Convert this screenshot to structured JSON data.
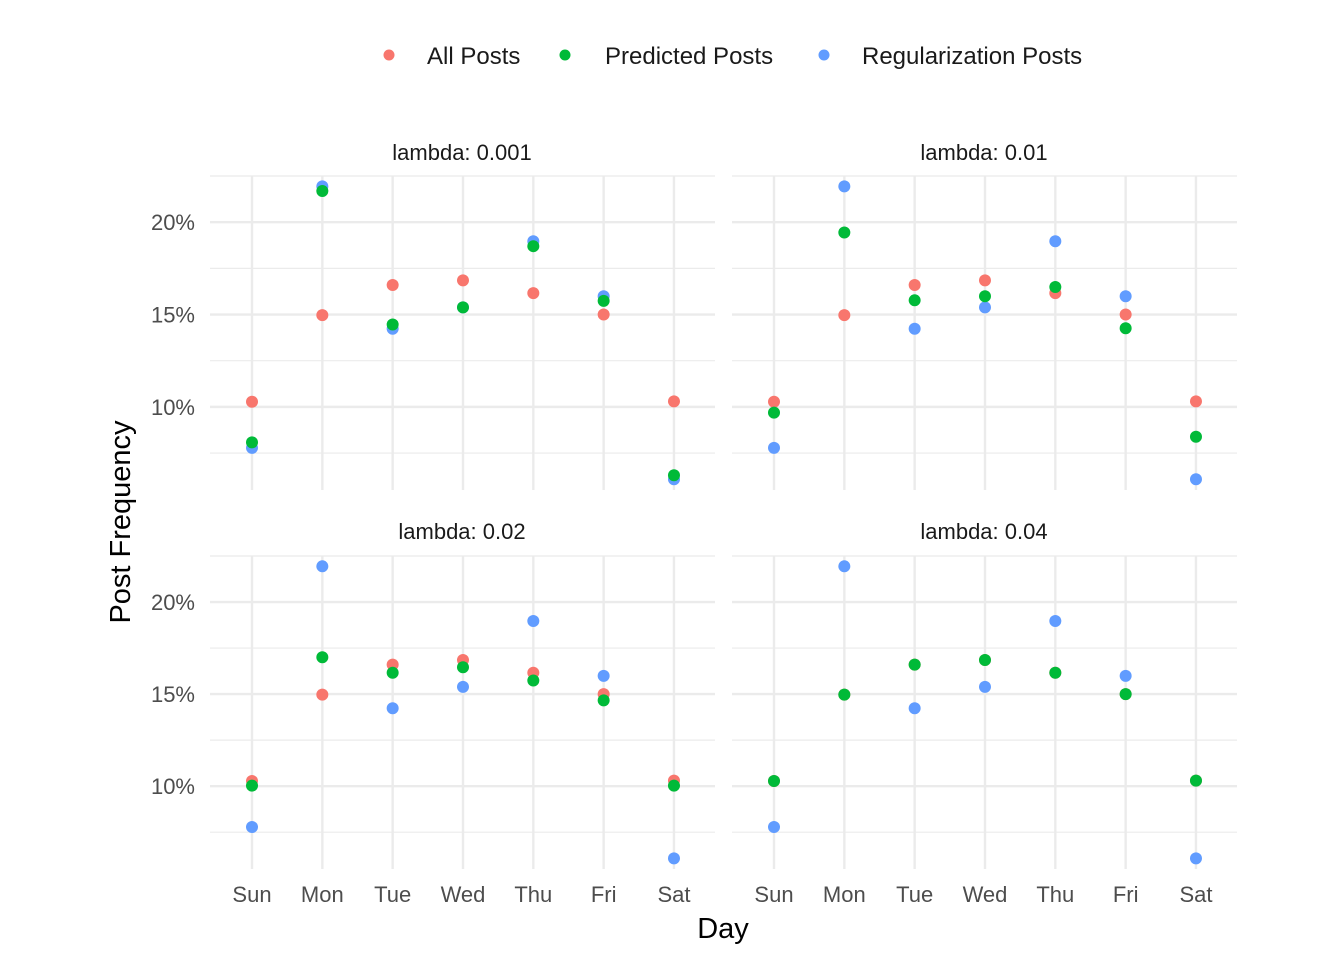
{
  "chart_data": {
    "type": "scatter",
    "facet_by": "lambda",
    "xlabel": "Day",
    "ylabel": "Post Frequency",
    "categories": [
      "Sun",
      "Mon",
      "Tue",
      "Wed",
      "Thu",
      "Fri",
      "Sat"
    ],
    "y_ticks": [
      0.1,
      0.15,
      0.2
    ],
    "y_tick_labels": [
      "10%",
      "15%",
      "20%"
    ],
    "ylim": [
      0.055,
      0.225
    ],
    "legend": {
      "position": "top",
      "entries": [
        "All Posts",
        "Predicted Posts",
        "Regularization Posts"
      ]
    },
    "colors": {
      "All Posts": "#F8766D",
      "Predicted Posts": "#00BA38",
      "Regularization Posts": "#619CFF"
    },
    "panels": [
      {
        "title": "lambda: 0.001",
        "series": [
          {
            "name": "All Posts",
            "values": [
              0.1028,
              0.1497,
              0.166,
              0.1685,
              0.1616,
              0.15,
              0.103
            ]
          },
          {
            "name": "Predicted Posts",
            "values": [
              0.0808,
              0.2169,
              0.1446,
              0.1539,
              0.187,
              0.1574,
              0.063
            ]
          },
          {
            "name": "Regularization Posts",
            "values": [
              0.0778,
              0.2194,
              0.1423,
              0.1539,
              0.1897,
              0.1599,
              0.0608
            ]
          }
        ]
      },
      {
        "title": "lambda: 0.01",
        "series": [
          {
            "name": "All Posts",
            "values": [
              0.1028,
              0.1497,
              0.166,
              0.1685,
              0.1616,
              0.15,
              0.103
            ]
          },
          {
            "name": "Predicted Posts",
            "values": [
              0.0969,
              0.1944,
              0.1577,
              0.1599,
              0.1649,
              0.1426,
              0.0838
            ]
          },
          {
            "name": "Regularization Posts",
            "values": [
              0.0778,
              0.2194,
              0.1423,
              0.1539,
              0.1897,
              0.1599,
              0.0608
            ]
          }
        ]
      },
      {
        "title": "lambda: 0.02",
        "series": [
          {
            "name": "All Posts",
            "values": [
              0.1028,
              0.1497,
              0.166,
              0.1685,
              0.1616,
              0.15,
              0.103
            ]
          },
          {
            "name": "Predicted Posts",
            "values": [
              0.1003,
              0.17,
              0.1616,
              0.1646,
              0.1574,
              0.1466,
              0.1003
            ]
          },
          {
            "name": "Regularization Posts",
            "values": [
              0.0778,
              0.2194,
              0.1423,
              0.1539,
              0.1897,
              0.1599,
              0.0608
            ]
          }
        ]
      },
      {
        "title": "lambda: 0.04",
        "series": [
          {
            "name": "All Posts",
            "values": [
              0.1028,
              0.1497,
              0.166,
              0.1685,
              0.1616,
              0.15,
              0.103
            ]
          },
          {
            "name": "Predicted Posts",
            "values": [
              0.1028,
              0.1497,
              0.166,
              0.1685,
              0.1616,
              0.15,
              0.103
            ]
          },
          {
            "name": "Regularization Posts",
            "values": [
              0.0778,
              0.2194,
              0.1423,
              0.1539,
              0.1897,
              0.1599,
              0.0608
            ]
          }
        ]
      }
    ]
  }
}
